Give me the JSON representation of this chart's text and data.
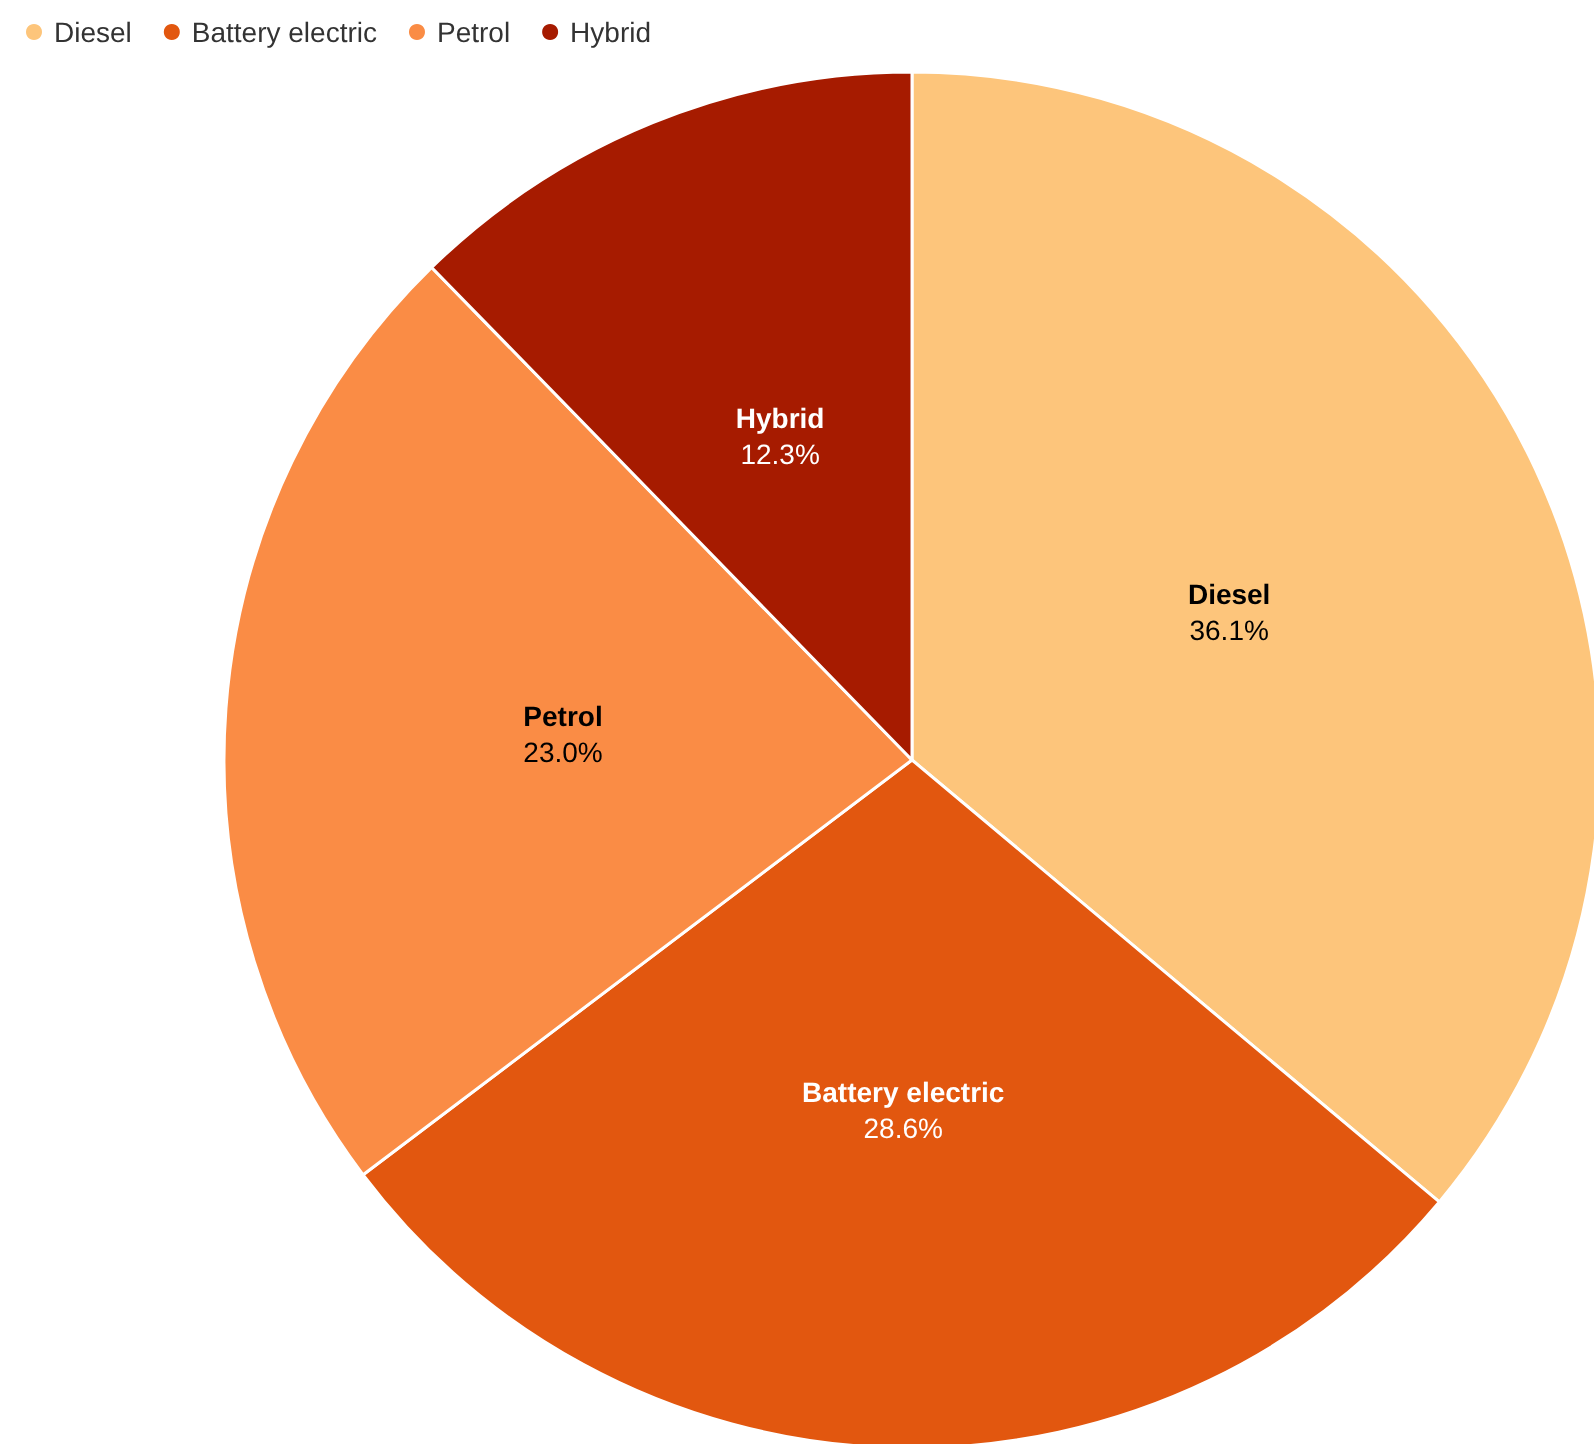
{
  "chart_data": {
    "type": "pie",
    "categories": [
      "Diesel",
      "Battery electric",
      "Petrol",
      "Hybrid"
    ],
    "values": [
      36.1,
      28.6,
      23.0,
      12.3
    ],
    "colors": [
      "#fdc57b",
      "#e2570f",
      "#fa8c45",
      "#a61b00"
    ],
    "value_labels": [
      "36.1%",
      "28.6%",
      "23.0%",
      "12.3%"
    ],
    "legend": "top left"
  }
}
